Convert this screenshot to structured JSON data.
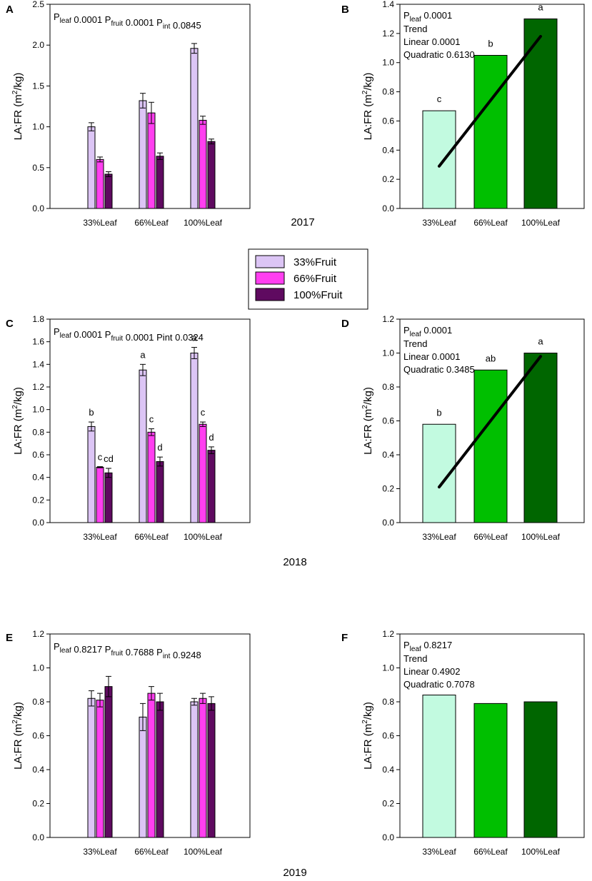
{
  "colors": {
    "fruit33": "#dcc5f5",
    "fruit66": "#ff3ff0",
    "fruit100": "#5f0a60",
    "leaf33": "#c2fae0",
    "leaf66": "#00bf00",
    "leaf100": "#006600",
    "trend": "#000000"
  },
  "legend": {
    "entries": [
      "33%Fruit",
      "66%Fruit",
      "100%Fruit"
    ]
  },
  "years": [
    "2017",
    "2018",
    "2019"
  ],
  "chart_data": [
    {
      "id": "A",
      "type": "bar",
      "year": "2017",
      "categories": [
        "33%Leaf",
        "66%Leaf",
        "100%Leaf"
      ],
      "ylabel": [
        "LA:FR (m",
        "2",
        "/kg)"
      ],
      "ylim": [
        0,
        2.5
      ],
      "yticks": [
        "0.0",
        "0.5",
        "1.0",
        "1.5",
        "2.0",
        "2.5"
      ],
      "series": [
        {
          "name": "33%Fruit",
          "values": [
            1.0,
            1.32,
            1.96
          ],
          "errors": [
            0.05,
            0.09,
            0.06
          ],
          "letters": []
        },
        {
          "name": "66%Fruit",
          "values": [
            0.6,
            1.17,
            1.08
          ],
          "errors": [
            0.03,
            0.13,
            0.05
          ],
          "letters": []
        },
        {
          "name": "100%Fruit",
          "values": [
            0.42,
            0.64,
            0.82
          ],
          "errors": [
            0.03,
            0.04,
            0.03
          ],
          "letters": []
        }
      ],
      "annotation": [
        {
          "text": "P",
          "sub": "leaf"
        },
        {
          "text": " 0.0001 "
        },
        {
          "text": "P",
          "sub": "fruit"
        },
        {
          "text": " 0.0001 "
        },
        {
          "text": "P",
          "sub": "int"
        },
        {
          "text": " 0.0845"
        }
      ]
    },
    {
      "id": "B",
      "type": "bar",
      "year": "2017",
      "categories": [
        "33%Leaf",
        "66%Leaf",
        "100%Leaf"
      ],
      "ylabel": [
        "LA:FR (m",
        "2",
        "/kg)"
      ],
      "ylim": [
        0,
        1.4
      ],
      "yticks": [
        "0.0",
        "0.2",
        "0.4",
        "0.6",
        "0.8",
        "1.0",
        "1.2",
        "1.4"
      ],
      "values": [
        0.67,
        1.05,
        1.3
      ],
      "letters": [
        "c",
        "b",
        "a"
      ],
      "trend": [
        0.29,
        1.18
      ],
      "annotation_lines": [
        "Trend",
        "Linear 0.0001",
        "Quadratic 0.6130"
      ],
      "annotation_first": {
        "p": "P",
        "sub": "leaf",
        "val": " 0.0001"
      }
    },
    {
      "id": "C",
      "type": "bar",
      "year": "2018",
      "categories": [
        "33%Leaf",
        "66%Leaf",
        "100%Leaf"
      ],
      "ylabel": [
        "LA:FR (m",
        "2",
        "/kg)"
      ],
      "ylim": [
        0,
        1.8
      ],
      "yticks": [
        "0.0",
        "0.2",
        "0.4",
        "0.6",
        "0.8",
        "1.0",
        "1.2",
        "1.4",
        "1.6",
        "1.8"
      ],
      "series": [
        {
          "name": "33%Fruit",
          "values": [
            0.85,
            1.35,
            1.5
          ],
          "errors": [
            0.04,
            0.05,
            0.05
          ],
          "letters": [
            "b",
            "a",
            "a"
          ]
        },
        {
          "name": "66%Fruit",
          "values": [
            0.49,
            0.8,
            0.87
          ],
          "errors": [
            0.005,
            0.03,
            0.02
          ],
          "letters": [
            "c",
            "c",
            "c"
          ]
        },
        {
          "name": "100%Fruit",
          "values": [
            0.44,
            0.54,
            0.64
          ],
          "errors": [
            0.04,
            0.04,
            0.03
          ],
          "letters": [
            "cd",
            "d",
            "d"
          ]
        }
      ],
      "annotation": [
        {
          "text": "P",
          "sub": "leaf"
        },
        {
          "text": " 0.0001 "
        },
        {
          "text": "P",
          "sub": "fruit"
        },
        {
          "text": " 0.0001 "
        },
        {
          "text": "Pint 0.0324"
        }
      ]
    },
    {
      "id": "D",
      "type": "bar",
      "year": "2018",
      "categories": [
        "33%Leaf",
        "66%Leaf",
        "100%Leaf"
      ],
      "ylabel": [
        "LA:FR (m",
        "2",
        "/kg)"
      ],
      "ylim": [
        0,
        1.2
      ],
      "yticks": [
        "0.0",
        "0.2",
        "0.4",
        "0.6",
        "0.8",
        "1.0",
        "1.2"
      ],
      "values": [
        0.58,
        0.9,
        1.0
      ],
      "letters": [
        "b",
        "ab",
        "a"
      ],
      "trend": [
        0.21,
        0.98
      ],
      "annotation_lines": [
        "Trend",
        "Linear 0.0001",
        "Quadratic 0.3485"
      ],
      "annotation_first": {
        "p": "P",
        "sub": "leaf",
        "val": " 0.0001"
      }
    },
    {
      "id": "E",
      "type": "bar",
      "year": "2019",
      "categories": [
        "33%Leaf",
        "66%Leaf",
        "100%Leaf"
      ],
      "ylabel": [
        "LA:FR (m",
        "2",
        "/kg)"
      ],
      "ylim": [
        0,
        1.2
      ],
      "yticks": [
        "0.0",
        "0.2",
        "0.4",
        "0.6",
        "0.8",
        "1.0",
        "1.2"
      ],
      "series": [
        {
          "name": "33%Fruit",
          "values": [
            0.82,
            0.71,
            0.8
          ],
          "errors": [
            0.045,
            0.08,
            0.02
          ],
          "letters": []
        },
        {
          "name": "66%Fruit",
          "values": [
            0.81,
            0.85,
            0.82
          ],
          "errors": [
            0.04,
            0.04,
            0.03
          ],
          "letters": []
        },
        {
          "name": "100%Fruit",
          "values": [
            0.89,
            0.8,
            0.79
          ],
          "errors": [
            0.06,
            0.05,
            0.04
          ],
          "letters": []
        }
      ],
      "annotation": [
        {
          "text": "P",
          "sub": "leaf"
        },
        {
          "text": " 0.8217 "
        },
        {
          "text": "P",
          "sub": "fruit"
        },
        {
          "text": " 0.7688 "
        },
        {
          "text": "P",
          "sub": "int"
        },
        {
          "text": " 0.9248"
        }
      ]
    },
    {
      "id": "F",
      "type": "bar",
      "year": "2019",
      "categories": [
        "33%Leaf",
        "66%Leaf",
        "100%Leaf"
      ],
      "ylabel": [
        "LA:FR (m",
        "2",
        "/kg)"
      ],
      "ylim": [
        0,
        1.2
      ],
      "yticks": [
        "0.0",
        "0.2",
        "0.4",
        "0.6",
        "0.8",
        "1.0",
        "1.2"
      ],
      "values": [
        0.84,
        0.79,
        0.8
      ],
      "letters": [],
      "trend": null,
      "annotation_lines": [
        "Trend",
        "Linear 0.4902",
        "Quadratic 0.7078"
      ],
      "annotation_first": {
        "p": "P",
        "sub": "leaf",
        "val": " 0.8217"
      }
    }
  ]
}
